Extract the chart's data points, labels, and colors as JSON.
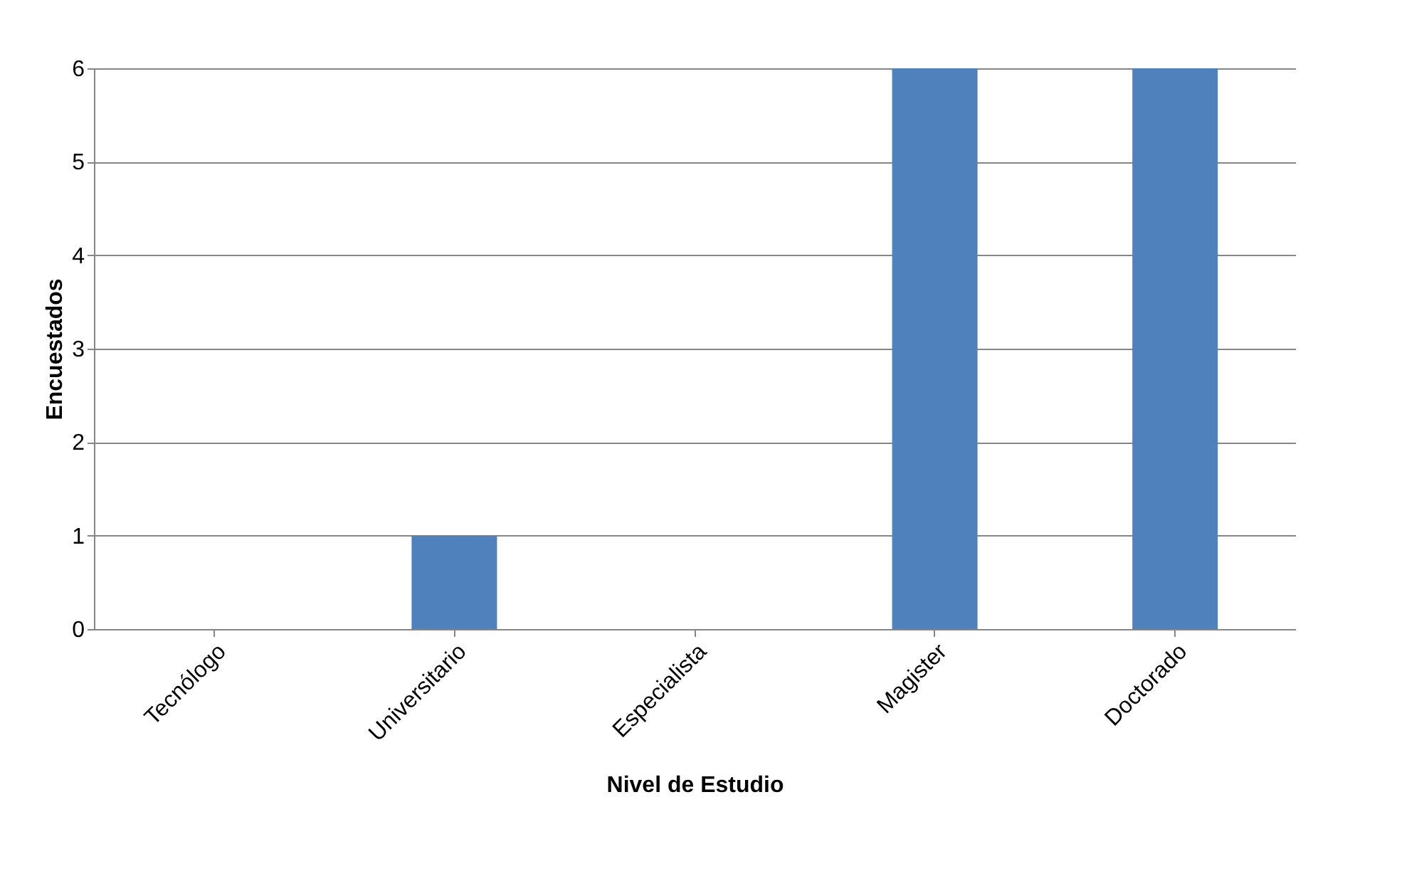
{
  "chart_data": {
    "type": "bar",
    "xlabel": "Nivel de Estudio",
    "ylabel": "Encuestados",
    "categories": [
      "Tecnólogo",
      "Universitario",
      "Especialista",
      "Magister",
      "Doctorado"
    ],
    "values": [
      0,
      1,
      0,
      6,
      6
    ],
    "color": "#4f81bd",
    "ylim": [
      0,
      6
    ],
    "yticks": [
      0,
      1,
      2,
      3,
      4,
      5,
      6
    ],
    "grid": "y"
  }
}
